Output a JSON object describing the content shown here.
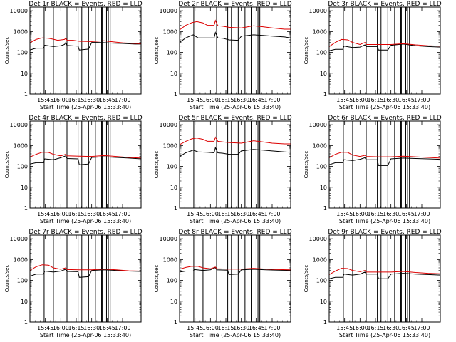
{
  "chart_data": [
    {
      "type": "line",
      "title": "Det 1r BLACK = Events, RED = LLD",
      "det": "1r",
      "xlabel": "Start Time (25-Apr-06 15:33:40)",
      "ylabel": "Counts/sec",
      "ylog": true,
      "ylim": [
        1,
        15000
      ],
      "xlim": [
        15.5,
        17.3
      ],
      "yticks": [
        1,
        10,
        100,
        1000,
        10000
      ],
      "xticks": [
        "15:45",
        "16:00",
        "16:15",
        "16:30",
        "16:45",
        "17:00"
      ],
      "vlines": [
        15.73,
        15.88,
        16.1,
        16.28,
        16.34,
        16.45,
        16.56,
        16.66,
        16.67,
        16.74,
        16.77,
        16.8
      ],
      "series": [
        {
          "color": "#000000",
          "x": [
            15.5,
            15.6,
            15.72,
            15.74,
            15.88,
            16.0,
            16.06,
            16.08,
            16.1,
            16.28,
            16.3,
            16.45,
            16.5,
            16.6,
            16.75,
            16.8,
            17.0,
            17.2,
            17.3
          ],
          "y": [
            130,
            160,
            160,
            220,
            190,
            210,
            240,
            300,
            215,
            200,
            130,
            145,
            300,
            300,
            290,
            280,
            270,
            250,
            250
          ]
        },
        {
          "color": "#dd0000",
          "x": [
            15.5,
            15.6,
            15.7,
            15.8,
            15.88,
            15.95,
            16.06,
            16.08,
            16.1,
            16.2,
            16.3,
            16.5,
            16.7,
            16.8,
            17.0,
            17.2,
            17.3
          ],
          "y": [
            290,
            420,
            500,
            480,
            430,
            380,
            420,
            480,
            380,
            380,
            340,
            330,
            360,
            330,
            290,
            270,
            260
          ]
        }
      ]
    },
    {
      "type": "line",
      "title": "Det 2r BLACK = Events, RED = LLD",
      "det": "2r",
      "xlabel": "Start Time (25-Apr-06 15:33:40)",
      "ylabel": "Counts/sec",
      "ylog": true,
      "ylim": [
        1,
        15000
      ],
      "xlim": [
        15.5,
        17.3
      ],
      "yticks": [
        1,
        10,
        100,
        1000,
        10000
      ],
      "xticks": [
        "15:45",
        "16:00",
        "16:15",
        "16:30",
        "16:45",
        "17:00"
      ],
      "vlines": [
        15.73,
        16.1,
        16.28,
        16.34,
        16.45,
        16.56,
        16.66,
        16.67,
        16.74,
        16.77,
        16.8
      ],
      "series": [
        {
          "color": "#000000",
          "x": [
            15.5,
            15.6,
            15.72,
            15.8,
            15.95,
            16.06,
            16.08,
            16.12,
            16.2,
            16.3,
            16.45,
            16.5,
            16.7,
            16.85,
            17.0,
            17.2,
            17.3
          ],
          "y": [
            300,
            500,
            700,
            500,
            500,
            500,
            900,
            500,
            480,
            400,
            380,
            600,
            700,
            650,
            600,
            550,
            500
          ]
        },
        {
          "color": "#dd0000",
          "x": [
            15.5,
            15.6,
            15.7,
            15.78,
            15.88,
            15.95,
            16.06,
            16.08,
            16.12,
            16.2,
            16.3,
            16.5,
            16.7,
            16.85,
            17.0,
            17.2,
            17.3
          ],
          "y": [
            1200,
            2000,
            2700,
            3000,
            2600,
            2000,
            2000,
            3400,
            1900,
            1800,
            1600,
            1500,
            1900,
            1700,
            1500,
            1300,
            1300
          ]
        }
      ]
    },
    {
      "type": "line",
      "title": "Det 3r BLACK = Events, RED = LLD",
      "det": "3r",
      "xlabel": "Start Time (25-Apr-06 15:33:40)",
      "ylabel": "Counts/sec",
      "ylog": true,
      "ylim": [
        1,
        15000
      ],
      "xlim": [
        15.5,
        17.3
      ],
      "yticks": [
        1,
        10,
        100,
        1000,
        10000
      ],
      "xticks": [
        "15:45",
        "16:00",
        "16:15",
        "16:30",
        "16:45",
        "17:00"
      ],
      "vlines": [
        15.73,
        15.88,
        16.1,
        16.28,
        16.34,
        16.45,
        16.56,
        16.66,
        16.67,
        16.74,
        16.77,
        16.8
      ],
      "series": [
        {
          "color": "#000000",
          "x": [
            15.5,
            15.6,
            15.72,
            15.74,
            15.88,
            16.0,
            16.08,
            16.1,
            16.28,
            16.3,
            16.45,
            16.5,
            16.7,
            16.9,
            17.1,
            17.3
          ],
          "y": [
            120,
            140,
            140,
            200,
            170,
            180,
            230,
            190,
            190,
            130,
            130,
            220,
            250,
            210,
            190,
            180
          ]
        },
        {
          "color": "#dd0000",
          "x": [
            15.5,
            15.6,
            15.7,
            15.8,
            15.88,
            16.0,
            16.08,
            16.1,
            16.3,
            16.5,
            16.7,
            16.9,
            17.1,
            17.3
          ],
          "y": [
            190,
            300,
            420,
            400,
            300,
            240,
            300,
            240,
            240,
            240,
            260,
            230,
            210,
            200
          ]
        }
      ]
    },
    {
      "type": "line",
      "title": "Det 4r BLACK = Events, RED = LLD",
      "det": "4r",
      "xlabel": "Start Time (25-Apr-06 15:33:40)",
      "ylabel": "Counts/sec",
      "ylog": true,
      "ylim": [
        1,
        15000
      ],
      "xlim": [
        15.5,
        17.3
      ],
      "yticks": [
        1,
        10,
        100,
        1000,
        10000
      ],
      "xticks": [
        "15:45",
        "16:00",
        "16:15",
        "16:30",
        "16:45",
        "17:00"
      ],
      "vlines": [
        15.73,
        15.88,
        16.1,
        16.28,
        16.34,
        16.45,
        16.56,
        16.66,
        16.67,
        16.74,
        16.77,
        16.8
      ],
      "series": [
        {
          "color": "#000000",
          "x": [
            15.5,
            15.6,
            15.72,
            15.74,
            15.88,
            16.0,
            16.08,
            16.1,
            16.28,
            16.3,
            16.45,
            16.5,
            16.7,
            16.9,
            17.1,
            17.3
          ],
          "y": [
            130,
            150,
            150,
            230,
            210,
            260,
            320,
            240,
            230,
            120,
            130,
            270,
            290,
            270,
            250,
            230
          ]
        },
        {
          "color": "#dd0000",
          "x": [
            15.5,
            15.6,
            15.7,
            15.8,
            15.88,
            16.0,
            16.08,
            16.1,
            16.3,
            16.5,
            16.7,
            16.9,
            17.1,
            17.3
          ],
          "y": [
            280,
            380,
            480,
            470,
            380,
            320,
            380,
            320,
            310,
            300,
            330,
            300,
            270,
            250
          ]
        }
      ]
    },
    {
      "type": "line",
      "title": "Det 5r BLACK = Events, RED = LLD",
      "det": "5r",
      "xlabel": "Start Time (25-Apr-06 15:33:40)",
      "ylabel": "Counts/sec",
      "ylog": true,
      "ylim": [
        1,
        15000
      ],
      "xlim": [
        15.5,
        17.3
      ],
      "yticks": [
        1,
        10,
        100,
        1000,
        10000
      ],
      "xticks": [
        "15:45",
        "16:00",
        "16:15",
        "16:30",
        "16:45",
        "17:00"
      ],
      "vlines": [
        15.73,
        16.1,
        16.28,
        16.34,
        16.45,
        16.56,
        16.66,
        16.67,
        16.74,
        16.77,
        16.8
      ],
      "series": [
        {
          "color": "#000000",
          "x": [
            15.5,
            15.6,
            15.72,
            15.8,
            15.95,
            16.06,
            16.08,
            16.12,
            16.2,
            16.3,
            16.45,
            16.5,
            16.7,
            16.85,
            17.0,
            17.2,
            17.3
          ],
          "y": [
            300,
            450,
            600,
            500,
            480,
            450,
            800,
            450,
            430,
            380,
            380,
            550,
            650,
            600,
            550,
            500,
            480
          ]
        },
        {
          "color": "#dd0000",
          "x": [
            15.5,
            15.6,
            15.7,
            15.78,
            15.88,
            15.95,
            16.06,
            16.08,
            16.12,
            16.2,
            16.3,
            16.5,
            16.7,
            16.85,
            17.0,
            17.2,
            17.3
          ],
          "y": [
            1100,
            1600,
            2100,
            2300,
            2000,
            1600,
            1600,
            2500,
            1600,
            1500,
            1400,
            1300,
            1700,
            1500,
            1300,
            1200,
            1200
          ]
        }
      ]
    },
    {
      "type": "line",
      "title": "Det 6r BLACK = Events, RED = LLD",
      "det": "6r",
      "xlabel": "Start Time (25-Apr-06 15:33:40)",
      "ylabel": "Counts/sec",
      "ylog": true,
      "ylim": [
        1,
        15000
      ],
      "xlim": [
        15.5,
        17.3
      ],
      "yticks": [
        1,
        10,
        100,
        1000,
        10000
      ],
      "xticks": [
        "15:45",
        "16:00",
        "16:15",
        "16:30",
        "16:45",
        "17:00"
      ],
      "vlines": [
        15.73,
        15.88,
        16.1,
        16.28,
        16.34,
        16.45,
        16.56,
        16.66,
        16.67,
        16.74,
        16.77,
        16.8
      ],
      "series": [
        {
          "color": "#000000",
          "x": [
            15.5,
            15.6,
            15.72,
            15.74,
            15.88,
            16.0,
            16.08,
            16.1,
            16.28,
            16.3,
            16.45,
            16.5,
            16.7,
            16.9,
            17.1,
            17.3
          ],
          "y": [
            120,
            150,
            150,
            210,
            190,
            220,
            260,
            210,
            210,
            110,
            110,
            230,
            250,
            240,
            230,
            220
          ]
        },
        {
          "color": "#dd0000",
          "x": [
            15.5,
            15.6,
            15.7,
            15.8,
            15.88,
            16.0,
            16.08,
            16.1,
            16.3,
            16.5,
            16.7,
            16.9,
            17.1,
            17.3
          ],
          "y": [
            260,
            380,
            480,
            470,
            350,
            300,
            340,
            300,
            290,
            290,
            310,
            290,
            270,
            250
          ]
        }
      ]
    },
    {
      "type": "line",
      "title": "Det 7r BLACK = Events, RED = LLD",
      "det": "7r",
      "xlabel": "Start Time (25-Apr-06 15:33:40)",
      "ylabel": "Counts/sec",
      "ylog": true,
      "ylim": [
        1,
        15000
      ],
      "xlim": [
        15.5,
        17.3
      ],
      "yticks": [
        1,
        10,
        100,
        1000,
        10000
      ],
      "xticks": [
        "15:45",
        "16:00",
        "16:15",
        "16:30",
        "16:45",
        "17:00"
      ],
      "vlines": [
        15.73,
        15.88,
        16.1,
        16.28,
        16.34,
        16.45,
        16.56,
        16.66,
        16.67,
        16.74,
        16.77,
        16.8
      ],
      "series": [
        {
          "color": "#000000",
          "x": [
            15.5,
            15.6,
            15.72,
            15.74,
            15.88,
            16.0,
            16.08,
            16.1,
            16.28,
            16.3,
            16.45,
            16.5,
            16.7,
            16.9,
            17.1,
            17.3
          ],
          "y": [
            160,
            200,
            200,
            280,
            250,
            280,
            340,
            270,
            260,
            140,
            150,
            300,
            320,
            300,
            280,
            270
          ]
        },
        {
          "color": "#dd0000",
          "x": [
            15.5,
            15.6,
            15.7,
            15.8,
            15.88,
            16.0,
            16.08,
            16.1,
            16.3,
            16.5,
            16.7,
            16.9,
            17.1,
            17.3
          ],
          "y": [
            300,
            450,
            560,
            540,
            400,
            340,
            400,
            330,
            320,
            320,
            350,
            320,
            290,
            280
          ]
        }
      ]
    },
    {
      "type": "line",
      "title": "Det 8r BLACK = Events, RED = LLD",
      "det": "8r",
      "xlabel": "Start Time (25-Apr-06 15:33:40)",
      "ylabel": "Counts/sec",
      "ylog": true,
      "ylim": [
        1,
        15000
      ],
      "xlim": [
        15.5,
        17.3
      ],
      "yticks": [
        1,
        10,
        100,
        1000,
        10000
      ],
      "xticks": [
        "15:45",
        "16:00",
        "16:15",
        "16:30",
        "16:45",
        "17:00"
      ],
      "vlines": [
        15.73,
        15.88,
        16.1,
        16.28,
        16.34,
        16.45,
        16.56,
        16.66,
        16.67,
        16.74,
        16.77,
        16.8
      ],
      "series": [
        {
          "color": "#000000",
          "x": [
            15.5,
            15.6,
            15.72,
            15.74,
            15.88,
            16.0,
            16.08,
            16.1,
            16.28,
            16.3,
            16.45,
            16.5,
            16.7,
            16.9,
            17.1,
            17.3
          ],
          "y": [
            250,
            280,
            280,
            330,
            300,
            320,
            420,
            320,
            310,
            190,
            200,
            320,
            340,
            320,
            310,
            300
          ]
        },
        {
          "color": "#dd0000",
          "x": [
            15.5,
            15.6,
            15.7,
            15.8,
            15.88,
            16.0,
            16.08,
            16.1,
            16.3,
            16.5,
            16.7,
            16.9,
            17.1,
            17.3
          ],
          "y": [
            340,
            420,
            480,
            470,
            400,
            360,
            440,
            360,
            350,
            350,
            380,
            350,
            330,
            320
          ]
        }
      ]
    },
    {
      "type": "line",
      "title": "Det 9r BLACK = Events, RED = LLD",
      "det": "9r",
      "xlabel": "Start Time (25-Apr-06 15:33:40)",
      "ylabel": "Counts/sec",
      "ylog": true,
      "ylim": [
        1,
        15000
      ],
      "xlim": [
        15.5,
        17.3
      ],
      "yticks": [
        1,
        10,
        100,
        1000,
        10000
      ],
      "xticks": [
        "15:45",
        "16:00",
        "16:15",
        "16:30",
        "16:45",
        "17:00"
      ],
      "vlines": [
        15.73,
        15.88,
        16.1,
        16.28,
        16.34,
        16.45,
        16.56,
        16.66,
        16.67,
        16.74,
        16.77,
        16.8
      ],
      "series": [
        {
          "color": "#000000",
          "x": [
            15.5,
            15.6,
            15.72,
            15.74,
            15.88,
            16.0,
            16.08,
            16.1,
            16.28,
            16.3,
            16.45,
            16.5,
            16.7,
            16.9,
            17.1,
            17.3
          ],
          "y": [
            120,
            140,
            140,
            200,
            180,
            200,
            250,
            200,
            200,
            120,
            120,
            200,
            220,
            200,
            190,
            180
          ]
        },
        {
          "color": "#dd0000",
          "x": [
            15.5,
            15.6,
            15.7,
            15.8,
            15.88,
            16.0,
            16.08,
            16.1,
            16.3,
            16.5,
            16.7,
            16.9,
            17.1,
            17.3
          ],
          "y": [
            190,
            280,
            380,
            370,
            300,
            260,
            300,
            250,
            250,
            250,
            270,
            240,
            220,
            210
          ]
        }
      ]
    }
  ]
}
